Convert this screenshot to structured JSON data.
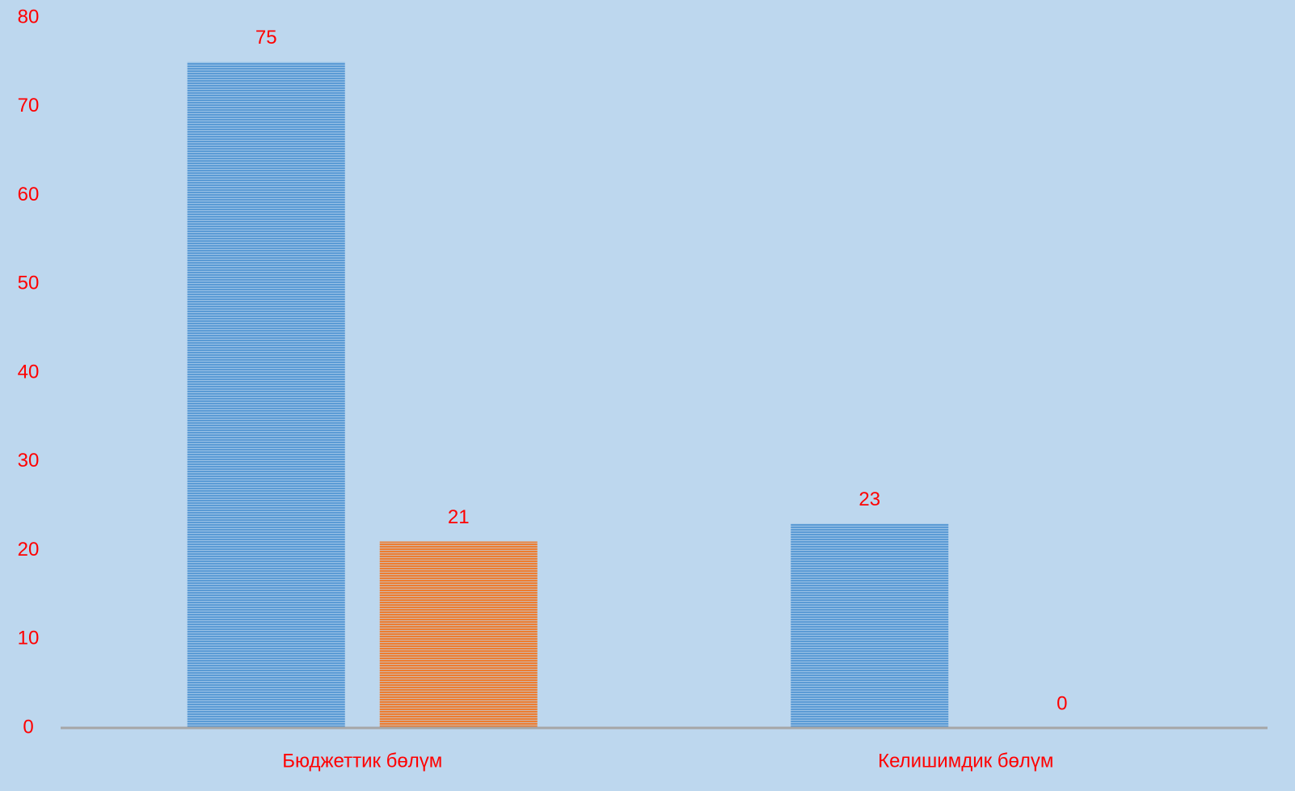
{
  "chart_data": {
    "type": "bar",
    "categories": [
      "Бюджеттик бөлүм",
      "Келишимдик бөлүм"
    ],
    "series": [
      {
        "color": "#5b9bd5",
        "values": [
          75,
          23
        ]
      },
      {
        "color": "#ed7d31",
        "values": [
          21,
          0
        ]
      }
    ],
    "ylim": [
      0,
      80
    ],
    "yticks": [
      0,
      10,
      20,
      30,
      40,
      50,
      60,
      70,
      80
    ],
    "grid": false
  }
}
